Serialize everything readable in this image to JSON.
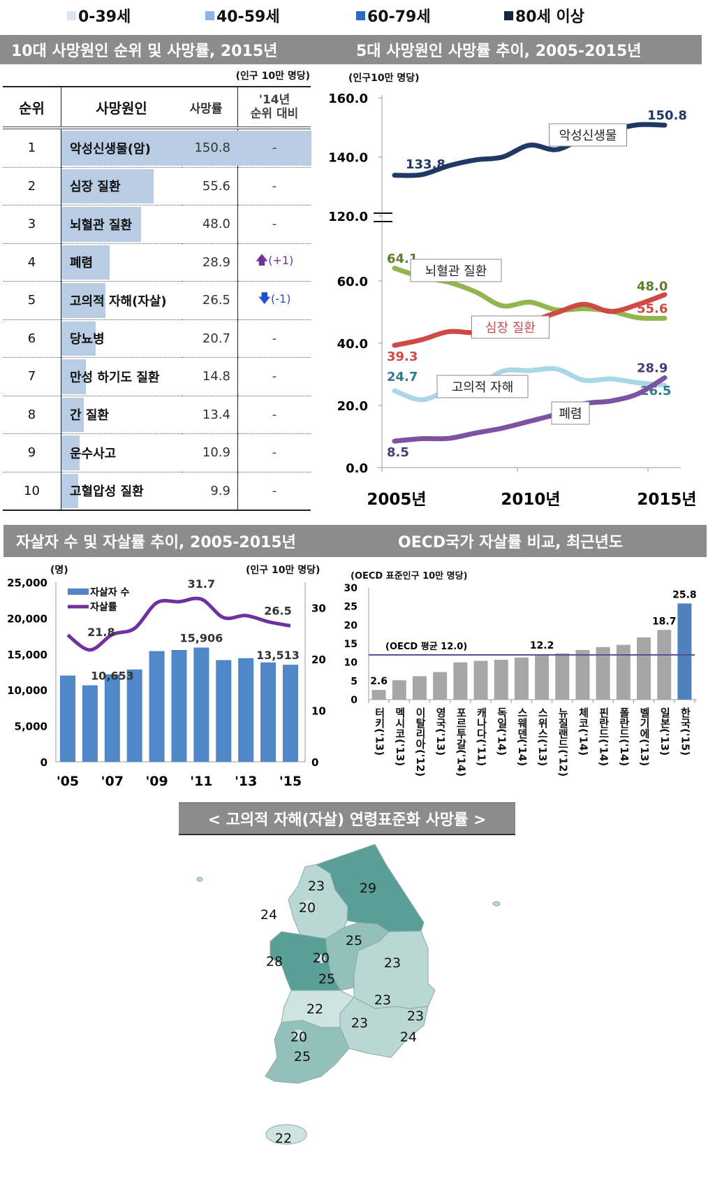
{
  "legend": [
    {
      "label": "0-39세",
      "color": "#dce4ef"
    },
    {
      "label": "40-59세",
      "color": "#8eb4e3"
    },
    {
      "label": "60-79세",
      "color": "#2e6bbf"
    },
    {
      "label": "80세 이상",
      "color": "#17243f"
    }
  ],
  "headers": {
    "top_left": "10대 사망원인 순위 및 사망률, 2015년",
    "top_right": "5대 사망원인 사망률 추이, 2005-2015년",
    "bottom_left": "자살자 수 및 자살률 추이, 2005-2015년",
    "bottom_right": "OECD국가 자살률 비교, 최근년도",
    "map": "< 고의적 자해(자살) 연령표준화 사망률 >"
  },
  "table": {
    "unit": "(인구 10만 명당)",
    "columns": [
      "순위",
      "사망원인",
      "사망률",
      "'14년",
      "순위 대비"
    ],
    "max_rate": 150.8,
    "rows": [
      {
        "rank": "1",
        "cause": "악성신생물(암)",
        "rate": "150.8",
        "change": "-",
        "dir": ""
      },
      {
        "rank": "2",
        "cause": "심장 질환",
        "rate": "55.6",
        "change": "-",
        "dir": ""
      },
      {
        "rank": "3",
        "cause": "뇌혈관 질환",
        "rate": "48.0",
        "change": "-",
        "dir": ""
      },
      {
        "rank": "4",
        "cause": "폐렴",
        "rate": "28.9",
        "change": "(+1)",
        "dir": "up"
      },
      {
        "rank": "5",
        "cause": "고의적 자해(자살)",
        "rate": "26.5",
        "change": "(-1)",
        "dir": "down"
      },
      {
        "rank": "6",
        "cause": "당뇨병",
        "rate": "20.7",
        "change": "-",
        "dir": ""
      },
      {
        "rank": "7",
        "cause": "만성 하기도 질환",
        "rate": "14.8",
        "change": "-",
        "dir": ""
      },
      {
        "rank": "8",
        "cause": "간 질환",
        "rate": "13.4",
        "change": "-",
        "dir": ""
      },
      {
        "rank": "9",
        "cause": "운수사고",
        "rate": "10.9",
        "change": "-",
        "dir": ""
      },
      {
        "rank": "10",
        "cause": "고혈압성 질환",
        "rate": "9.9",
        "change": "-",
        "dir": ""
      }
    ]
  },
  "chart_data": [
    {
      "type": "line",
      "title": "5대 사망원인 사망률 추이, 2005-2015년",
      "ylabel": "(인구10만 명당)",
      "x": [
        2005,
        2006,
        2007,
        2008,
        2009,
        2010,
        2011,
        2012,
        2013,
        2014,
        2015
      ],
      "xticks": [
        "2005년",
        "2010년",
        "2015년"
      ],
      "yticks": [
        "0.0",
        "20.0",
        "40.0",
        "60.0",
        "120.0",
        "140.0",
        "160.0"
      ],
      "axis_break": [
        60,
        120
      ],
      "series": [
        {
          "name": "악성신생물",
          "color": "#1f3864",
          "label_color": "#1f3864",
          "start_label": "133.8",
          "end_label": "150.8",
          "values": [
            133.8,
            134.0,
            137.0,
            139.0,
            140.0,
            144.0,
            142.5,
            146.5,
            149.0,
            150.9,
            150.8
          ]
        },
        {
          "name": "뇌혈관 질환",
          "color": "#92b550",
          "label_color": "#5e7f2a",
          "start_label": "64.1",
          "end_label": "48.0",
          "values": [
            64.1,
            61.3,
            59.6,
            56.5,
            52.0,
            53.2,
            50.7,
            51.1,
            50.3,
            48.2,
            48.0
          ]
        },
        {
          "name": "심장 질환",
          "color": "#d04a45",
          "label_color": "#d04a45",
          "start_label": "39.3",
          "end_label": "55.6",
          "values": [
            39.3,
            41.1,
            43.7,
            43.4,
            45.0,
            46.9,
            49.8,
            52.5,
            50.2,
            52.4,
            55.6
          ]
        },
        {
          "name": "고의적 자해",
          "color": "#a9d7e8",
          "label_color": "#2f7a8a",
          "start_label": "24.7",
          "end_label": "26.5",
          "values": [
            24.7,
            21.8,
            24.8,
            26.0,
            31.0,
            31.2,
            31.7,
            28.1,
            28.5,
            27.3,
            26.5
          ]
        },
        {
          "name": "폐렴",
          "color": "#7d52a0",
          "label_color": "#4b3a78",
          "start_label": "8.5",
          "end_label": "28.9",
          "values": [
            8.5,
            9.3,
            9.4,
            11.1,
            12.7,
            14.9,
            17.2,
            20.5,
            21.4,
            23.7,
            28.9
          ]
        }
      ]
    },
    {
      "type": "bar+line",
      "title": "자살자 수 및 자살률 추이, 2005-2015년",
      "ylabel_left": "(명)",
      "ylabel_right": "(인구 10만 명당)",
      "categories": [
        "'05",
        "'06",
        "'07",
        "'08",
        "'09",
        "'10",
        "'11",
        "'12",
        "'13",
        "'14",
        "'15"
      ],
      "xtick_labels": [
        "'05",
        "'07",
        "'09",
        "'11",
        "'13",
        "'15"
      ],
      "ylim_left": [
        0,
        25000
      ],
      "yticks_left": [
        "0",
        "5,000",
        "10,000",
        "15,000",
        "20,000",
        "25,000"
      ],
      "ylim_right": [
        0,
        35
      ],
      "yticks_right": [
        "0",
        "10",
        "20",
        "30"
      ],
      "series": [
        {
          "name": "자살자 수",
          "type": "bar",
          "color": "#4f87c8",
          "values": [
            12011,
            10653,
            12174,
            12858,
            15413,
            15566,
            15906,
            14160,
            14427,
            13836,
            13513
          ]
        },
        {
          "name": "자살률",
          "type": "line",
          "color": "#7030a0",
          "values": [
            24.7,
            21.8,
            24.8,
            26.0,
            31.0,
            31.2,
            31.7,
            28.1,
            28.5,
            27.3,
            26.5
          ]
        }
      ],
      "annotations": [
        {
          "series": 0,
          "index": 1,
          "text": "10,653"
        },
        {
          "series": 0,
          "index": 6,
          "text": "15,906"
        },
        {
          "series": 0,
          "index": 10,
          "text": "13,513"
        },
        {
          "series": 1,
          "index": 1,
          "text": "21.8"
        },
        {
          "series": 1,
          "index": 6,
          "text": "31.7"
        },
        {
          "series": 1,
          "index": 10,
          "text": "26.5"
        }
      ]
    },
    {
      "type": "bar",
      "title": "OECD국가 자살률 비교, 최근년도",
      "ylabel": "(OECD 표준인구 10만 명당)",
      "ylim": [
        0,
        30
      ],
      "yticks": [
        "0",
        "5",
        "10",
        "15",
        "20",
        "25",
        "30"
      ],
      "categories": [
        "터키('13)",
        "멕시코('13)",
        "이탈리아('12)",
        "영국('13)",
        "포르투갈('14)",
        "캐나다('11)",
        "독일('14)",
        "스웨덴('14)",
        "스위스('13)",
        "뉴질랜드('12)",
        "체코('14)",
        "핀란드('14)",
        "폴란드('14)",
        "벨기에('13)",
        "일본('13)",
        "한국('15)"
      ],
      "values": [
        2.6,
        5.2,
        6.3,
        7.4,
        10.0,
        10.4,
        10.7,
        11.3,
        12.2,
        12.4,
        13.3,
        14.1,
        14.7,
        16.7,
        18.7,
        25.8
      ],
      "value_labels": {
        "0": "2.6",
        "8": "12.2",
        "14": "18.7",
        "15": "25.8"
      },
      "bar_color": "#a6a6a6",
      "highlight_color": "#4f81bd",
      "reference_line": {
        "value": 12.0,
        "label": "(OECD 평균 12.0)",
        "color": "#5b4f9a"
      }
    }
  ],
  "map": {
    "regions": [
      {
        "name": "강원",
        "value": "29",
        "level": 3
      },
      {
        "name": "경기",
        "value": "23",
        "level": 1
      },
      {
        "name": "서울",
        "value": "20",
        "level": 0
      },
      {
        "name": "인천",
        "value": "24",
        "level": 1
      },
      {
        "name": "충북",
        "value": "25",
        "level": 2
      },
      {
        "name": "충남",
        "value": "28",
        "level": 3
      },
      {
        "name": "세종",
        "value": "20",
        "level": 0
      },
      {
        "name": "대전",
        "value": "25",
        "level": 2
      },
      {
        "name": "경북",
        "value": "23",
        "level": 1
      },
      {
        "name": "대구",
        "value": "23",
        "level": 1
      },
      {
        "name": "전북",
        "value": "22",
        "level": 0
      },
      {
        "name": "경남",
        "value": "23",
        "level": 1
      },
      {
        "name": "울산",
        "value": "23",
        "level": 1
      },
      {
        "name": "부산",
        "value": "24",
        "level": 1
      },
      {
        "name": "광주",
        "value": "20",
        "level": 0
      },
      {
        "name": "전남",
        "value": "25",
        "level": 2
      },
      {
        "name": "제주",
        "value": "22",
        "level": 0
      }
    ],
    "level_colors": [
      "#cfe3e1",
      "#b9d8d5",
      "#93c0bb",
      "#5a9e98"
    ]
  }
}
